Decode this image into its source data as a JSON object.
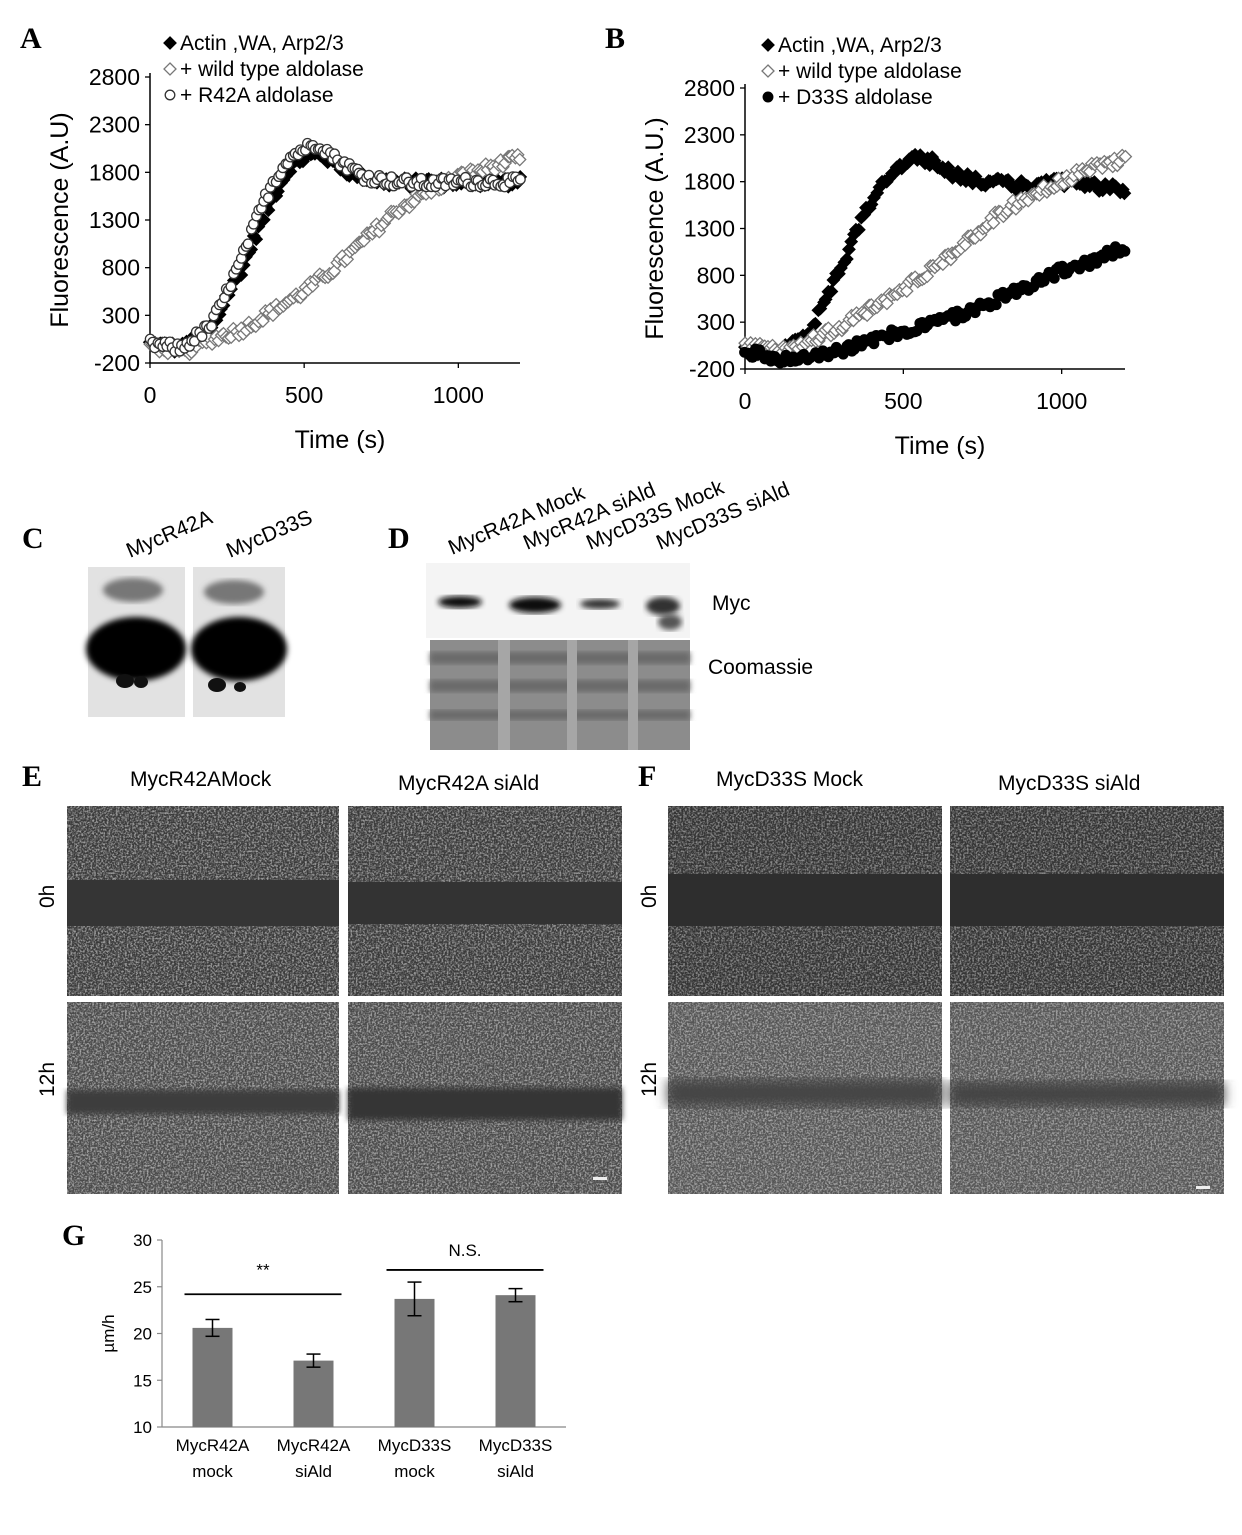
{
  "panel_labels": {
    "a": "A",
    "b": "B",
    "c": "C",
    "d": "D",
    "e": "E",
    "f": "F",
    "g": "G"
  },
  "chart_data": [
    {
      "panel": "A",
      "type": "scatter",
      "xlabel": "Time (s)",
      "ylabel": "Fluorescence (A.U)",
      "xlim": [
        0,
        1200
      ],
      "ylim": [
        -200,
        2800
      ],
      "xticks": [
        "0",
        "500",
        "1000"
      ],
      "yticks": [
        "-200",
        "300",
        "800",
        "1300",
        "1800",
        "2300",
        "2800"
      ],
      "legend_position": "top",
      "series": [
        {
          "name": "Actin ,WA, Arp2/3",
          "marker": "filled-diamond",
          "x": [
            0,
            100,
            200,
            250,
            300,
            350,
            400,
            450,
            500,
            550,
            600,
            650,
            700,
            750,
            800,
            850,
            900,
            950,
            1000,
            1050,
            1100,
            1150,
            1200
          ],
          "y": [
            0,
            -50,
            150,
            500,
            800,
            1200,
            1550,
            1850,
            1950,
            2000,
            1900,
            1800,
            1750,
            1700,
            1700,
            1680,
            1700,
            1690,
            1700,
            1700,
            1700,
            1700,
            1700
          ]
        },
        {
          "name": "+ wild type aldolase",
          "marker": "open-diamond",
          "x": [
            0,
            100,
            200,
            300,
            400,
            500,
            600,
            700,
            800,
            900,
            1000,
            1100,
            1200
          ],
          "y": [
            0,
            -100,
            50,
            150,
            350,
            550,
            800,
            1100,
            1400,
            1600,
            1750,
            1850,
            1950
          ]
        },
        {
          "name": "+ R42A aldolase",
          "marker": "open-circle",
          "x": [
            0,
            100,
            200,
            250,
            300,
            350,
            400,
            450,
            500,
            550,
            600,
            650,
            700,
            800,
            900,
            1000,
            1100,
            1200
          ],
          "y": [
            0,
            -50,
            200,
            550,
            900,
            1350,
            1700,
            1950,
            2050,
            2100,
            1950,
            1850,
            1750,
            1700,
            1680,
            1700,
            1700,
            1700
          ]
        }
      ]
    },
    {
      "panel": "B",
      "type": "scatter",
      "xlabel": "Time (s)",
      "ylabel": "Fluorescence (A.U.)",
      "xlim": [
        0,
        1200
      ],
      "ylim": [
        -200,
        2800
      ],
      "xticks": [
        "0",
        "500",
        "1000"
      ],
      "yticks": [
        "-200",
        "300",
        "800",
        "1300",
        "1800",
        "2300",
        "2800"
      ],
      "legend_position": "top",
      "series": [
        {
          "name": "Actin ,WA, Arp2/3",
          "marker": "filled-diamond",
          "x": [
            0,
            100,
            200,
            250,
            300,
            350,
            400,
            450,
            500,
            550,
            600,
            650,
            700,
            750,
            800,
            900,
            1000,
            1100,
            1200
          ],
          "y": [
            0,
            -50,
            150,
            500,
            850,
            1250,
            1600,
            1850,
            2000,
            2050,
            2000,
            1900,
            1850,
            1800,
            1780,
            1750,
            1800,
            1750,
            1700
          ]
        },
        {
          "name": "+ wild type aldolase",
          "marker": "open-diamond",
          "x": [
            0,
            100,
            200,
            300,
            400,
            500,
            600,
            700,
            800,
            900,
            1000,
            1100,
            1200
          ],
          "y": [
            50,
            0,
            100,
            250,
            450,
            650,
            900,
            1150,
            1450,
            1650,
            1800,
            1950,
            2050
          ]
        },
        {
          "name": "+ D33S aldolase",
          "marker": "filled-circle",
          "x": [
            0,
            100,
            200,
            300,
            400,
            500,
            600,
            700,
            800,
            900,
            1000,
            1100,
            1200
          ],
          "y": [
            0,
            -100,
            -50,
            0,
            100,
            200,
            300,
            400,
            550,
            700,
            850,
            950,
            1100
          ]
        }
      ]
    },
    {
      "panel": "G",
      "type": "bar",
      "ylabel": "µm/h",
      "ylim": [
        10,
        30
      ],
      "yticks": [
        "10",
        "15",
        "20",
        "25",
        "30"
      ],
      "categories": [
        [
          "MycR42A",
          "mock"
        ],
        [
          "MycR42A",
          "siAld"
        ],
        [
          "MycD33S",
          "mock"
        ],
        [
          "MycD33S",
          "siAld"
        ]
      ],
      "values": [
        20.6,
        17.1,
        23.7,
        24.1
      ],
      "errors": [
        0.9,
        0.7,
        1.8,
        0.7
      ],
      "color": "#777777",
      "annotations": [
        {
          "text": "**",
          "from": 0,
          "to": 1
        },
        {
          "text": "N.S.",
          "from": 2,
          "to": 3
        }
      ]
    }
  ],
  "blot_c": {
    "labels": [
      "MycR42A",
      "MycD33S"
    ]
  },
  "blot_d": {
    "labels": [
      "MycR42A Mock",
      "MycR42A siAld",
      "MycD33S Mock",
      "MycD33S siAld"
    ],
    "rows": [
      "Myc",
      "Coomassie"
    ]
  },
  "panel_e": {
    "columns": [
      "MycR42AMock",
      "MycR42A siAld"
    ],
    "rows": [
      "0h",
      "12h"
    ]
  },
  "panel_f": {
    "columns": [
      "MycD33S Mock",
      "MycD33S siAld"
    ],
    "rows": [
      "0h",
      "12h"
    ]
  }
}
